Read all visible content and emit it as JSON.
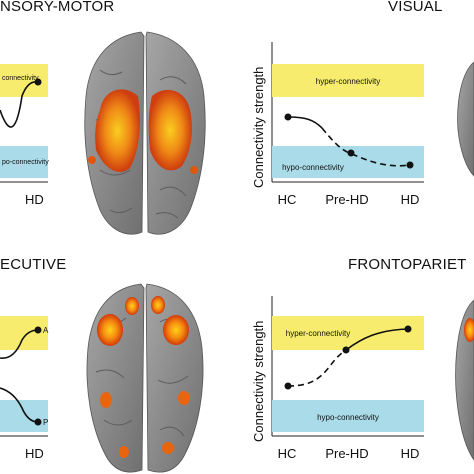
{
  "panels": [
    {
      "title": "NSORY-MOTOR",
      "hyper_label": "connectivity",
      "hypo_label": "po-connectivity",
      "ticks": [
        "HD"
      ]
    },
    {
      "title": "VISUAL",
      "ylabel": "Connectivity strength",
      "hyper_label": "hyper-connectivity",
      "hypo_label": "hypo-connectivity",
      "ticks": [
        "HC",
        "Pre-HD",
        "HD"
      ]
    },
    {
      "title": "ECUTIVE",
      "marker_top": "A",
      "marker_bottom": "P",
      "ticks": [
        "HD"
      ]
    },
    {
      "title": "FRONTOPARIET",
      "ylabel": "Connectivity strength",
      "hyper_label": "hyper-connectivity",
      "hypo_label": "hypo-connectivity",
      "ticks": [
        "HC",
        "Pre-HD",
        "HD"
      ]
    }
  ],
  "colors": {
    "hyper_band": "#f7ec6e",
    "hypo_band": "#a9dbe8",
    "brain": "#8e8e8e",
    "activation": "#f07a14"
  }
}
